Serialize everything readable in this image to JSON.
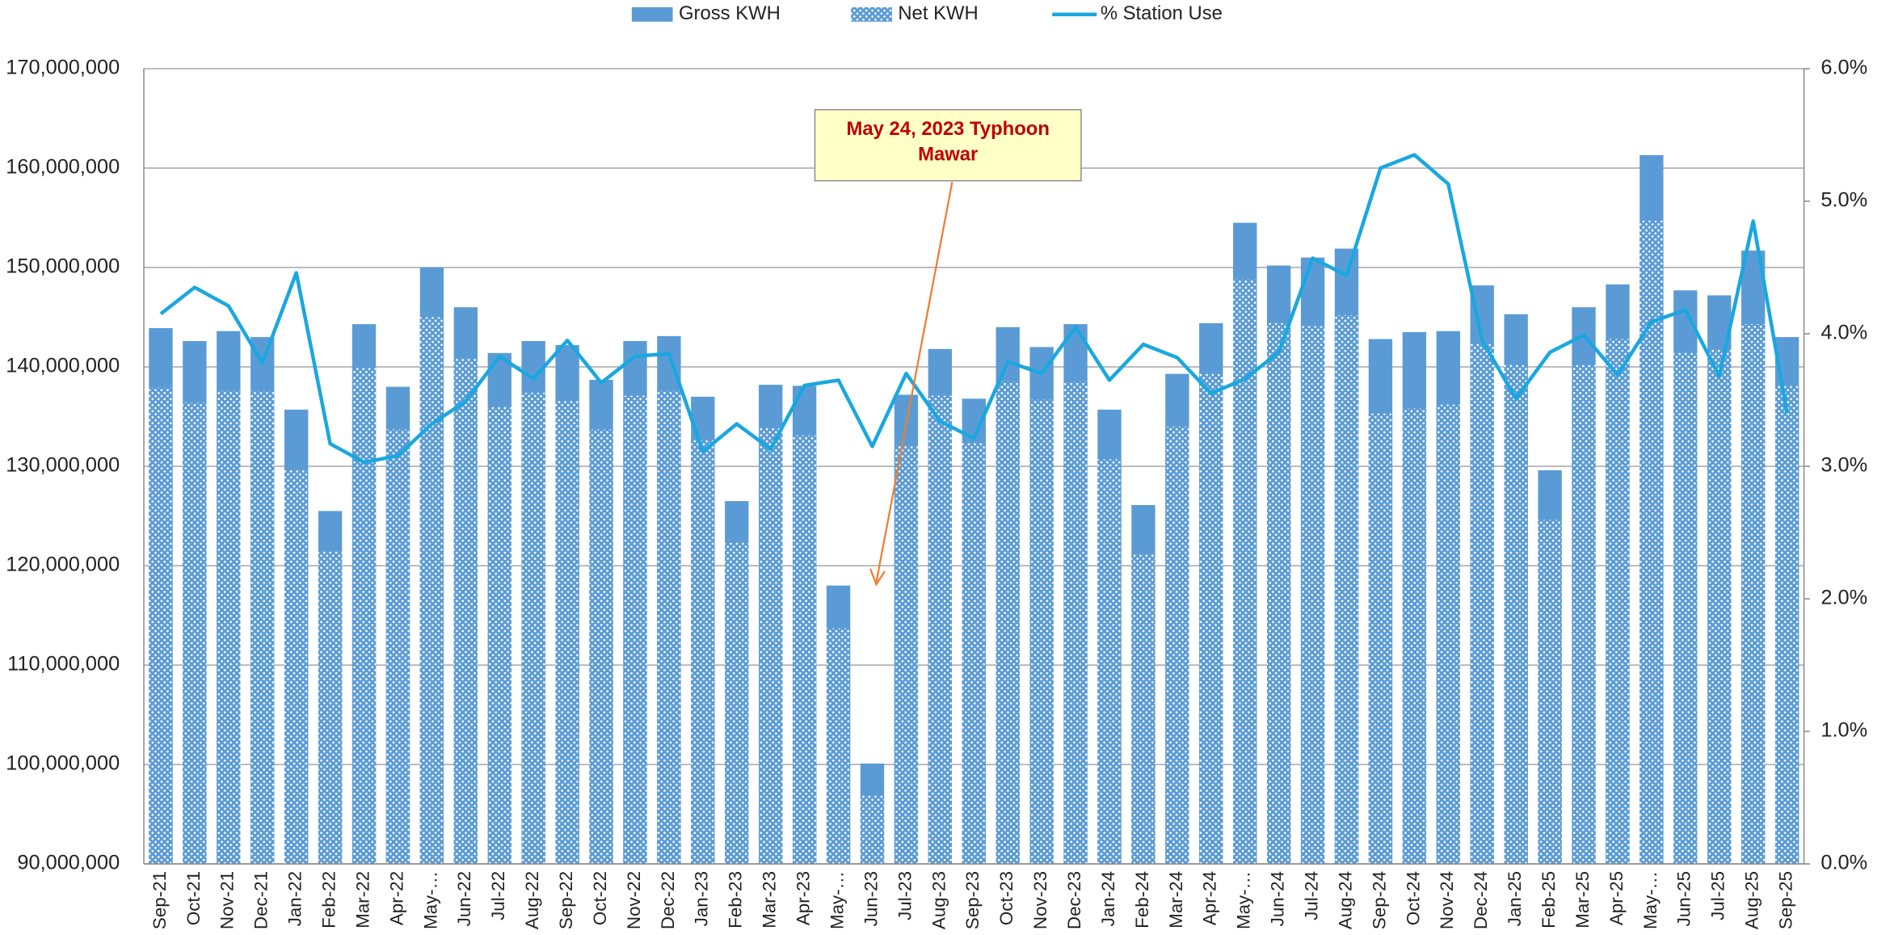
{
  "chart_data": {
    "type": "bar",
    "categories": [
      "Sep-21",
      "Oct-21",
      "Nov-21",
      "Dec-21",
      "Jan-22",
      "Feb-22",
      "Mar-22",
      "Apr-22",
      "May-…",
      "Jun-22",
      "Jul-22",
      "Aug-22",
      "Sep-22",
      "Oct-22",
      "Nov-22",
      "Dec-22",
      "Jan-23",
      "Feb-23",
      "Mar-23",
      "Apr-23",
      "May-…",
      "Jun-23",
      "Jul-23",
      "Aug-23",
      "Sep-23",
      "Oct-23",
      "Nov-23",
      "Dec-23",
      "Jan-24",
      "Feb-24",
      "Mar-24",
      "Apr-24",
      "May-…",
      "Jun-24",
      "Jul-24",
      "Aug-24",
      "Sep-24",
      "Oct-24",
      "Nov-24",
      "Dec-24",
      "Jan-25",
      "Feb-25",
      "Mar-25",
      "Apr-25",
      "May-…",
      "Jun-25",
      "Jul-25",
      "Aug-25",
      "Sep-25"
    ],
    "series": [
      {
        "name": "Gross KWH",
        "color": "#5b9bd5",
        "values": [
          143900000,
          142600000,
          143600000,
          143000000,
          135700000,
          125500000,
          144300000,
          138000000,
          150000000,
          146000000,
          141400000,
          142600000,
          142200000,
          138700000,
          142600000,
          143100000,
          137000000,
          126500000,
          138200000,
          138100000,
          118000000,
          100100000,
          137200000,
          141800000,
          136800000,
          144000000,
          142000000,
          144300000,
          135700000,
          126100000,
          139300000,
          144400000,
          154500000,
          150200000,
          151000000,
          151900000,
          142800000,
          143500000,
          143600000,
          148200000,
          145300000,
          129600000,
          146000000,
          148300000,
          161300000,
          147700000,
          147200000,
          151700000,
          143000000
        ]
      },
      {
        "name": "Net KWH",
        "color": "#5b9bd5",
        "values": [
          137900000,
          136400000,
          137600000,
          137600000,
          129600000,
          121500000,
          139900000,
          133700000,
          145000000,
          140900000,
          136000000,
          137400000,
          136600000,
          133700000,
          137100000,
          137600000,
          132700000,
          122300000,
          133900000,
          133100000,
          113700000,
          96900000,
          132100000,
          137100000,
          132400000,
          138500000,
          136700000,
          138500000,
          130700000,
          121200000,
          134000000,
          139300000,
          148800000,
          144400000,
          144100000,
          145200000,
          135300000,
          135800000,
          136200000,
          142300000,
          140200000,
          124600000,
          140200000,
          142800000,
          154700000,
          141500000,
          141800000,
          144300000,
          138100000
        ]
      },
      {
        "name": "% Station Use",
        "color": "#1aa7e0",
        "type": "line",
        "axis": "y2",
        "values": [
          4.15,
          4.35,
          4.21,
          3.78,
          4.46,
          3.17,
          3.03,
          3.08,
          3.32,
          3.49,
          3.83,
          3.66,
          3.95,
          3.63,
          3.83,
          3.85,
          3.11,
          3.32,
          3.13,
          3.61,
          3.65,
          3.15,
          3.7,
          3.34,
          3.21,
          3.79,
          3.7,
          4.05,
          3.65,
          3.92,
          3.82,
          3.55,
          3.66,
          3.86,
          4.57,
          4.44,
          5.25,
          5.35,
          5.13,
          3.95,
          3.51,
          3.86,
          3.99,
          3.69,
          4.09,
          4.18,
          3.68,
          4.85,
          3.4
        ]
      }
    ],
    "ylim": [
      90000000,
      170000000
    ],
    "yticks": [
      {
        "value": 90000000,
        "label": "90,000,000"
      },
      {
        "value": 100000000,
        "label": "100,000,000"
      },
      {
        "value": 110000000,
        "label": "110,000,000"
      },
      {
        "value": 120000000,
        "label": "120,000,000"
      },
      {
        "value": 130000000,
        "label": "130,000,000"
      },
      {
        "value": 140000000,
        "label": "140,000,000"
      },
      {
        "value": 150000000,
        "label": "150,000,000"
      },
      {
        "value": 160000000,
        "label": "160,000,000"
      },
      {
        "value": 170000000,
        "label": "170,000,000"
      }
    ],
    "y2lim": [
      0,
      6
    ],
    "y2ticks": [
      {
        "value": 0,
        "label": "0.0%"
      },
      {
        "value": 1,
        "label": "1.0%"
      },
      {
        "value": 2,
        "label": "2.0%"
      },
      {
        "value": 3,
        "label": "3.0%"
      },
      {
        "value": 4,
        "label": "4.0%"
      },
      {
        "value": 5,
        "label": "5.0%"
      },
      {
        "value": 6,
        "label": "6.0%"
      }
    ],
    "grid": true,
    "legend": "top",
    "annotation": "May 24, 2023 Typhoon Mawar"
  }
}
